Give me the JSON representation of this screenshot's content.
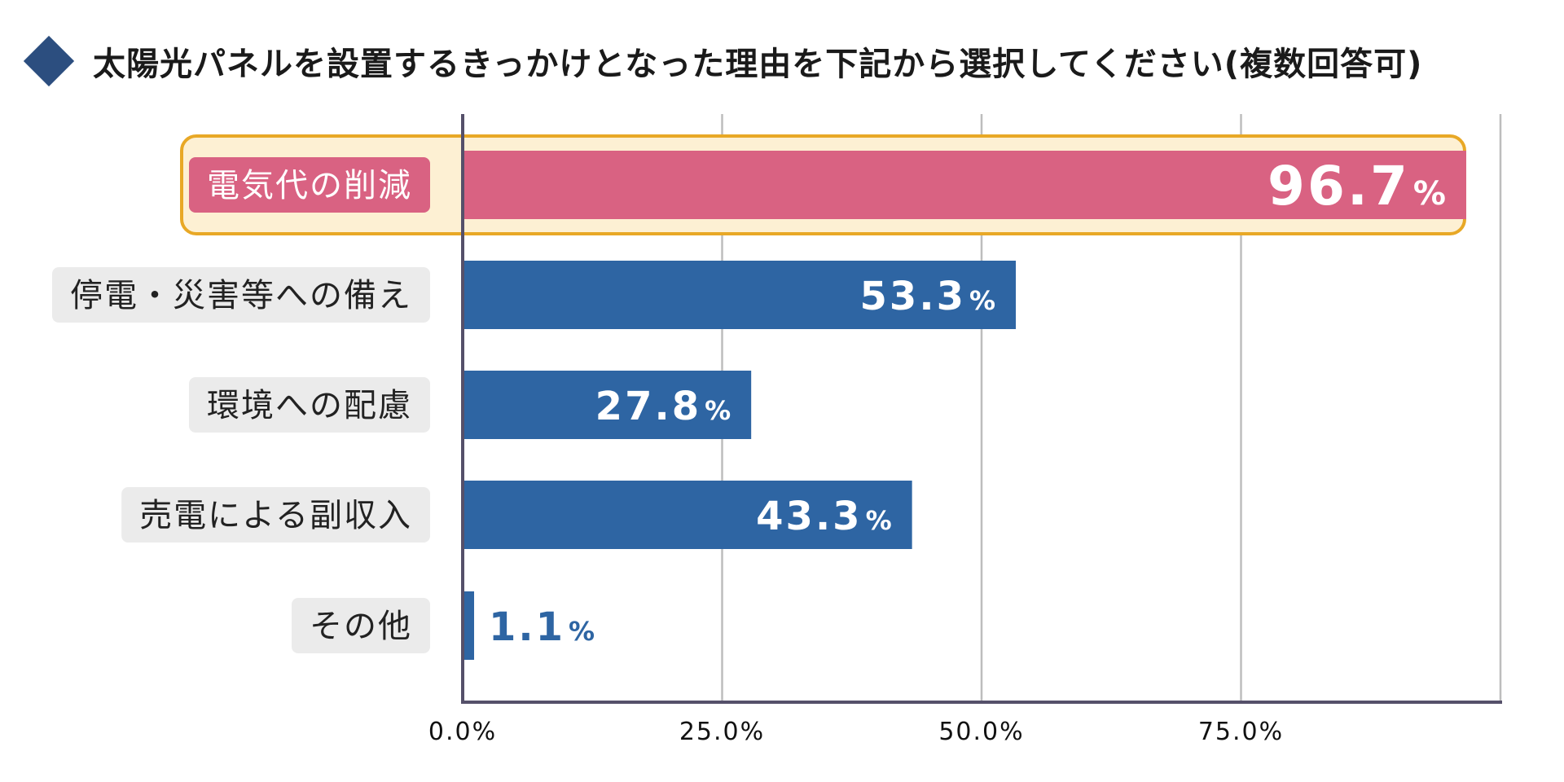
{
  "title": "太陽光パネルを設置するきっかけとなった理由を下記から選択してください(複数回答可)",
  "colors": {
    "bar": "#2e65a3",
    "highlight_bar": "#d96282",
    "highlight_bg": "#fdf0d3",
    "highlight_border": "#e8a826",
    "axis": "#55506a",
    "grid": "#bdbdbd",
    "diamond": "#2c4e7f"
  },
  "chart_data": {
    "type": "bar",
    "orientation": "horizontal",
    "title": "太陽光パネルを設置するきっかけとなった理由を下記から選択してください(複数回答可)",
    "categories": [
      "電気代の削減",
      "停電・災害等への備え",
      "環境への配慮",
      "売電による副収入",
      "その他"
    ],
    "values": [
      96.7,
      53.3,
      27.8,
      43.3,
      1.1
    ],
    "value_labels": [
      "96.7",
      "53.3",
      "27.8",
      "43.3",
      "1.1"
    ],
    "value_suffix": "%",
    "highlighted_index": 0,
    "xlim": [
      0,
      100
    ],
    "xticks": [
      0,
      25,
      50,
      75
    ],
    "xtick_labels": [
      "0.0%",
      "25.0%",
      "50.0%",
      "75.0%"
    ],
    "grid": true,
    "xlabel": "",
    "ylabel": ""
  }
}
